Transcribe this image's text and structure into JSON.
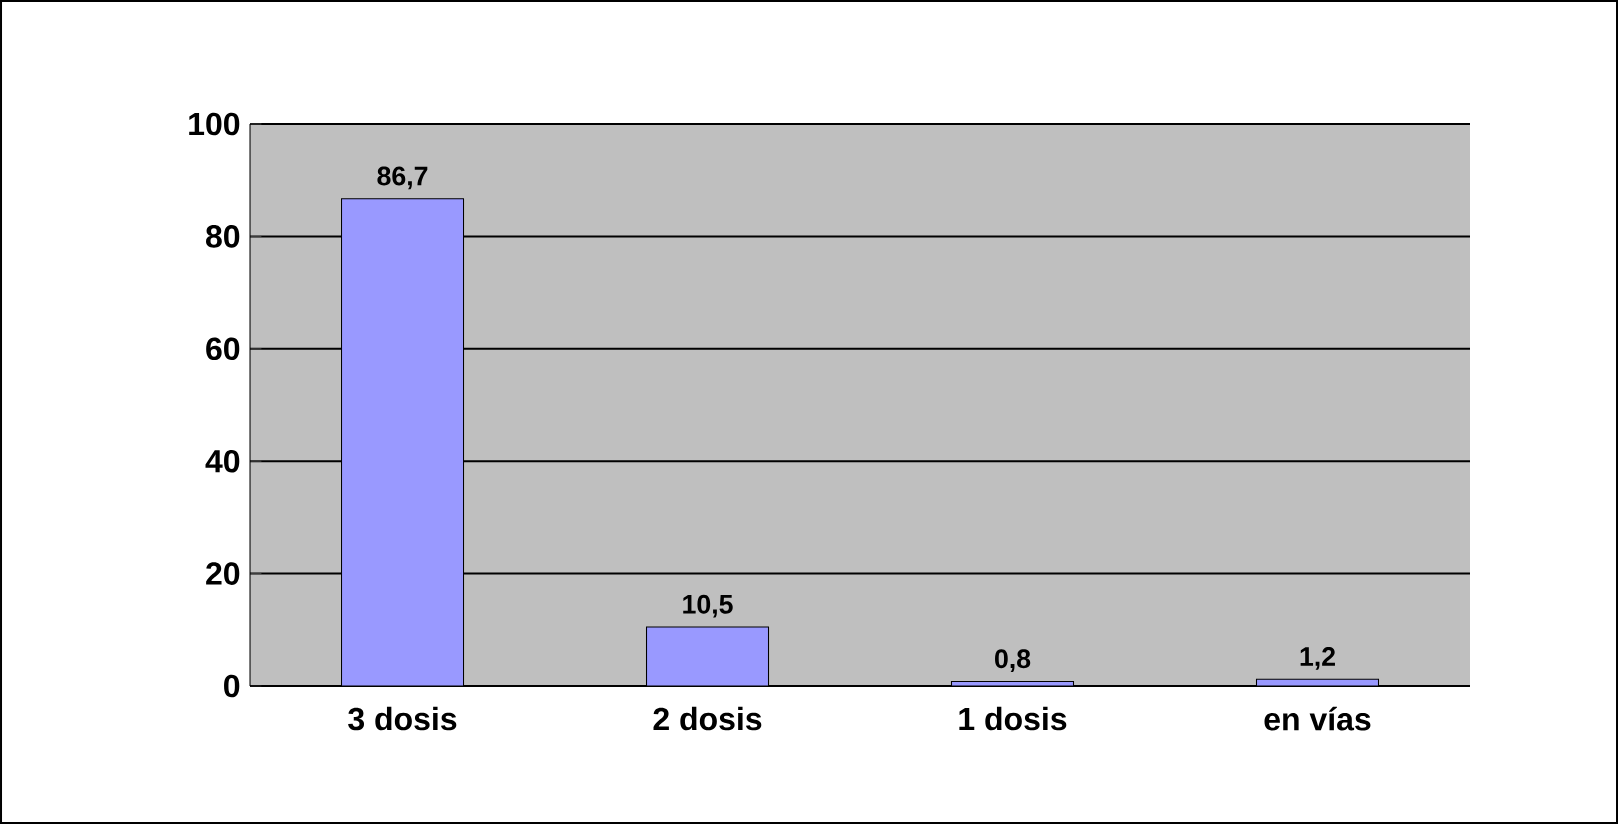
{
  "chart_data": {
    "type": "bar",
    "categories": [
      "3 dosis",
      "2 dosis",
      "1 dosis",
      "en vías"
    ],
    "values": [
      86.7,
      10.5,
      0.8,
      1.2
    ],
    "value_labels": [
      "86,7",
      "10,5",
      "0,8",
      "1,2"
    ],
    "color": "#9999ff",
    "ylim": [
      0,
      100
    ],
    "yticks": [
      0,
      20,
      40,
      60,
      80,
      100
    ],
    "grid": "y"
  }
}
